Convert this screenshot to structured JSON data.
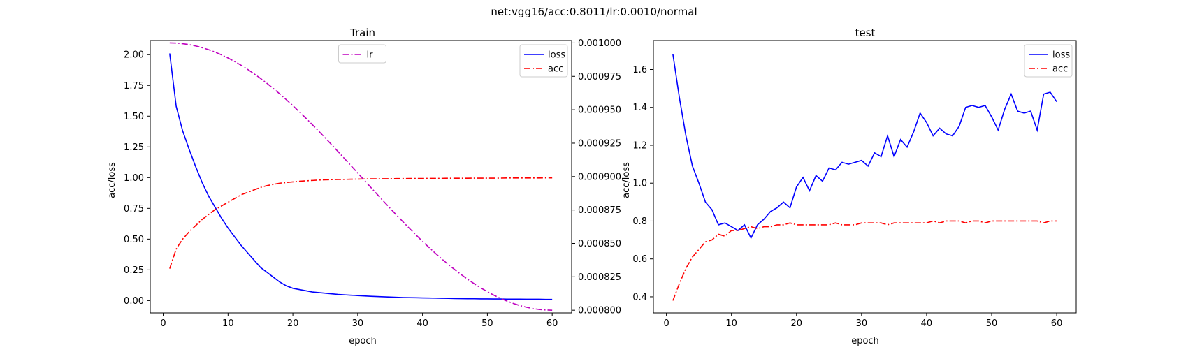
{
  "figure": {
    "suptitle": "net:vgg16/acc:0.8011/lr:0.0010/normal"
  },
  "chart_data": [
    {
      "type": "line",
      "title": "Train",
      "xlabel": "epoch",
      "ylabel": "acc/loss",
      "xlim": [
        -2,
        63
      ],
      "ylim": [
        -0.1,
        2.115
      ],
      "xticks": [
        0,
        10,
        20,
        30,
        40,
        50,
        60
      ],
      "yticks": [
        0.0,
        0.25,
        0.5,
        0.75,
        1.0,
        1.25,
        1.5,
        1.75,
        2.0
      ],
      "ytick_labels": [
        "0.00",
        "0.25",
        "0.50",
        "0.75",
        "1.00",
        "1.25",
        "1.50",
        "1.75",
        "2.00"
      ],
      "y2lim": [
        0.000798,
        0.0010018
      ],
      "y2ticks": [
        0.0008,
        0.000825,
        0.00085,
        0.000875,
        0.0009,
        0.000925,
        0.00095,
        0.000975,
        0.001
      ],
      "y2tick_labels": [
        "0.000800",
        "0.000825",
        "0.000850",
        "0.000875",
        "0.000900",
        "0.000925",
        "0.000950",
        "0.000975",
        "0.001000"
      ],
      "x": [
        1,
        2,
        3,
        4,
        5,
        6,
        7,
        8,
        9,
        10,
        11,
        12,
        13,
        14,
        15,
        16,
        17,
        18,
        19,
        20,
        21,
        22,
        23,
        24,
        25,
        26,
        27,
        28,
        29,
        30,
        31,
        32,
        33,
        34,
        35,
        36,
        37,
        38,
        39,
        40,
        41,
        42,
        43,
        44,
        45,
        46,
        47,
        48,
        49,
        50,
        51,
        52,
        53,
        54,
        55,
        56,
        57,
        58,
        59,
        60
      ],
      "series": [
        {
          "name": "loss",
          "axis": "left",
          "color": "#0000ff",
          "style": "solid",
          "values": [
            2.01,
            1.58,
            1.38,
            1.23,
            1.09,
            0.96,
            0.85,
            0.76,
            0.67,
            0.59,
            0.52,
            0.45,
            0.39,
            0.33,
            0.27,
            0.23,
            0.19,
            0.15,
            0.12,
            0.1,
            0.09,
            0.08,
            0.07,
            0.065,
            0.06,
            0.055,
            0.05,
            0.047,
            0.044,
            0.041,
            0.038,
            0.035,
            0.033,
            0.031,
            0.029,
            0.027,
            0.025,
            0.024,
            0.023,
            0.022,
            0.021,
            0.02,
            0.019,
            0.018,
            0.017,
            0.016,
            0.015,
            0.015,
            0.014,
            0.014,
            0.013,
            0.013,
            0.012,
            0.012,
            0.012,
            0.011,
            0.011,
            0.011,
            0.01,
            0.01
          ]
        },
        {
          "name": "acc",
          "axis": "left",
          "color": "#ff0000",
          "style": "dashdot",
          "values": [
            0.26,
            0.42,
            0.5,
            0.56,
            0.61,
            0.66,
            0.7,
            0.74,
            0.77,
            0.8,
            0.83,
            0.86,
            0.88,
            0.9,
            0.92,
            0.935,
            0.945,
            0.955,
            0.96,
            0.965,
            0.97,
            0.974,
            0.977,
            0.98,
            0.982,
            0.984,
            0.985,
            0.986,
            0.987,
            0.988,
            0.989,
            0.99,
            0.99,
            0.991,
            0.991,
            0.992,
            0.992,
            0.993,
            0.993,
            0.993,
            0.994,
            0.994,
            0.994,
            0.995,
            0.995,
            0.995,
            0.995,
            0.996,
            0.996,
            0.996,
            0.996,
            0.996,
            0.997,
            0.997,
            0.997,
            0.997,
            0.997,
            0.997,
            0.998,
            0.998
          ]
        },
        {
          "name": "lr",
          "axis": "right",
          "color": "#bf00bf",
          "style": "dashdot",
          "values": "cosine:0.001:0.0008:60"
        }
      ],
      "legends": [
        {
          "placement": "upper-right",
          "entries": [
            "loss",
            "acc"
          ]
        },
        {
          "placement": "upper-center",
          "entries": [
            "lr"
          ]
        }
      ]
    },
    {
      "type": "line",
      "title": "test",
      "xlabel": "epoch",
      "ylabel": "acc/loss",
      "xlim": [
        -2,
        63
      ],
      "ylim": [
        0.315,
        1.753
      ],
      "xticks": [
        0,
        10,
        20,
        30,
        40,
        50,
        60
      ],
      "yticks": [
        0.4,
        0.6,
        0.8,
        1.0,
        1.2,
        1.4,
        1.6
      ],
      "ytick_labels": [
        "0.4",
        "0.6",
        "0.8",
        "1.0",
        "1.2",
        "1.4",
        "1.6"
      ],
      "x": [
        1,
        2,
        3,
        4,
        5,
        6,
        7,
        8,
        9,
        10,
        11,
        12,
        13,
        14,
        15,
        16,
        17,
        18,
        19,
        20,
        21,
        22,
        23,
        24,
        25,
        26,
        27,
        28,
        29,
        30,
        31,
        32,
        33,
        34,
        35,
        36,
        37,
        38,
        39,
        40,
        41,
        42,
        43,
        44,
        45,
        46,
        47,
        48,
        49,
        50,
        51,
        52,
        53,
        54,
        55,
        56,
        57,
        58,
        59,
        60
      ],
      "series": [
        {
          "name": "loss",
          "color": "#0000ff",
          "style": "solid",
          "values": [
            1.68,
            1.45,
            1.25,
            1.09,
            1.0,
            0.9,
            0.86,
            0.78,
            0.79,
            0.77,
            0.75,
            0.78,
            0.71,
            0.78,
            0.81,
            0.85,
            0.87,
            0.9,
            0.87,
            0.98,
            1.03,
            0.96,
            1.04,
            1.01,
            1.08,
            1.07,
            1.11,
            1.1,
            1.11,
            1.12,
            1.09,
            1.16,
            1.14,
            1.25,
            1.14,
            1.23,
            1.19,
            1.27,
            1.37,
            1.32,
            1.25,
            1.29,
            1.26,
            1.25,
            1.3,
            1.4,
            1.41,
            1.4,
            1.41,
            1.35,
            1.28,
            1.39,
            1.47,
            1.38,
            1.37,
            1.38,
            1.28,
            1.47,
            1.48,
            1.43
          ]
        },
        {
          "name": "acc",
          "color": "#ff0000",
          "style": "dashdot",
          "values": [
            0.38,
            0.47,
            0.55,
            0.61,
            0.65,
            0.69,
            0.7,
            0.73,
            0.72,
            0.75,
            0.75,
            0.76,
            0.77,
            0.76,
            0.77,
            0.77,
            0.78,
            0.78,
            0.79,
            0.78,
            0.78,
            0.78,
            0.78,
            0.78,
            0.78,
            0.79,
            0.78,
            0.78,
            0.78,
            0.79,
            0.79,
            0.79,
            0.79,
            0.78,
            0.79,
            0.79,
            0.79,
            0.79,
            0.79,
            0.79,
            0.8,
            0.79,
            0.8,
            0.8,
            0.8,
            0.79,
            0.8,
            0.8,
            0.79,
            0.8,
            0.8,
            0.8,
            0.8,
            0.8,
            0.8,
            0.8,
            0.8,
            0.79,
            0.8,
            0.8
          ]
        }
      ],
      "legends": [
        {
          "placement": "upper-right",
          "entries": [
            "loss",
            "acc"
          ]
        }
      ]
    }
  ]
}
